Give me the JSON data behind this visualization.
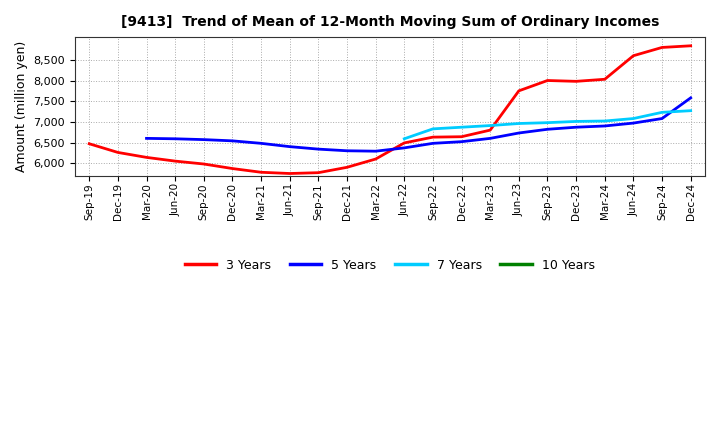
{
  "title": "[9413]  Trend of Mean of 12-Month Moving Sum of Ordinary Incomes",
  "ylabel": "Amount (million yen)",
  "ylim": [
    5700,
    9050
  ],
  "yticks": [
    6000,
    6500,
    7000,
    7500,
    8000,
    8500
  ],
  "background_color": "#ffffff",
  "grid_color": "#aaaaaa",
  "x_labels": [
    "Sep-19",
    "Dec-19",
    "Mar-20",
    "Jun-20",
    "Sep-20",
    "Dec-20",
    "Mar-21",
    "Jun-21",
    "Sep-21",
    "Dec-21",
    "Mar-22",
    "Jun-22",
    "Sep-22",
    "Dec-22",
    "Mar-23",
    "Jun-23",
    "Sep-23",
    "Dec-23",
    "Mar-24",
    "Jun-24",
    "Sep-24",
    "Dec-24"
  ],
  "series": {
    "3 Years": {
      "color": "#ff0000",
      "linewidth": 2.0,
      "values": [
        6470,
        6260,
        6140,
        6050,
        5980,
        5870,
        5780,
        5750,
        5770,
        5900,
        6100,
        6490,
        6630,
        6640,
        6800,
        7750,
        8000,
        7980,
        8030,
        8600,
        8800,
        8840
      ]
    },
    "5 Years": {
      "color": "#0000ff",
      "linewidth": 2.0,
      "values": [
        null,
        null,
        6600,
        6590,
        6570,
        6540,
        6480,
        6400,
        6340,
        6300,
        6290,
        6370,
        6480,
        6520,
        6600,
        6730,
        6820,
        6870,
        6900,
        6970,
        7080,
        7580
      ]
    },
    "7 Years": {
      "color": "#00ccff",
      "linewidth": 2.0,
      "values": [
        null,
        null,
        null,
        null,
        null,
        null,
        null,
        null,
        null,
        null,
        null,
        6590,
        6830,
        6870,
        6910,
        6960,
        6980,
        7010,
        7020,
        7080,
        7230,
        7270
      ]
    },
    "10 Years": {
      "color": "#008000",
      "linewidth": 2.0,
      "values": [
        null,
        null,
        null,
        null,
        null,
        null,
        null,
        null,
        null,
        null,
        null,
        null,
        null,
        null,
        null,
        null,
        null,
        null,
        null,
        null,
        null,
        null
      ]
    }
  },
  "legend_labels": [
    "3 Years",
    "5 Years",
    "7 Years",
    "10 Years"
  ],
  "legend_colors": [
    "#ff0000",
    "#0000ff",
    "#00ccff",
    "#008000"
  ]
}
